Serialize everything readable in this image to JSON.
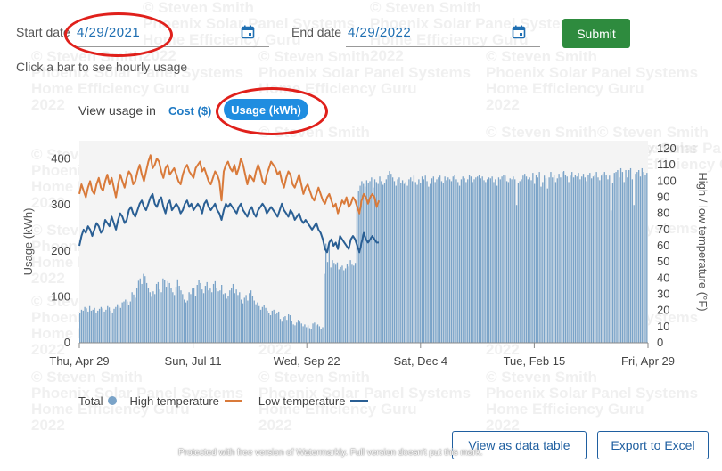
{
  "form": {
    "start_label": "Start date",
    "start_value": "4/29/2021",
    "end_label": "End date",
    "end_value": "4/29/2022",
    "submit_label": "Submit",
    "hint": "Click a bar to see hourly usage"
  },
  "view_toggle": {
    "label": "View usage in",
    "cost_label": "Cost ($)",
    "usage_label": "Usage (kWh)",
    "active": "usage"
  },
  "buttons": {
    "data_table": "View as data table",
    "export": "Export to Excel"
  },
  "watermark": {
    "lines": [
      "© Steven Smith",
      "Phoenix Solar Panel Systems",
      "Home Efficiency Guru",
      "2022"
    ],
    "footer": "Protected with free version of Watermarkly. Full version doesn't put this mark."
  },
  "colors": {
    "bar": "#7aa3c8",
    "high_temp": "#d97a3a",
    "low_temp": "#2a5f94",
    "accent_green": "#2e8b3e",
    "accent_blue": "#1f8de0",
    "annotation_red": "#e0201b"
  },
  "chart_data": {
    "type": "bar",
    "x_tick_labels": [
      "Thu, Apr 29",
      "Sun, Jul 11",
      "Wed, Sep 22",
      "Sat, Dec 4",
      "Tue, Feb 15",
      "Fri, Apr 29"
    ],
    "ylabel": "Usage (kWh)",
    "ylim": [
      0,
      440
    ],
    "yticks": [
      0,
      100,
      200,
      300,
      400
    ],
    "y2label": "High / low temperature (°F)",
    "y2lim": [
      0,
      125
    ],
    "y2ticks": [
      0,
      10,
      20,
      30,
      40,
      50,
      60,
      70,
      80,
      90,
      100,
      110,
      120
    ],
    "legend": [
      "Total",
      "High temperature",
      "Low temperature"
    ],
    "legend_position": "bottom-left",
    "series": [
      {
        "name": "Total",
        "axis": "left",
        "x_start": "2021-04-29",
        "values": [
          65,
          72,
          70,
          78,
          75,
          68,
          80,
          70,
          72,
          76,
          66,
          70,
          74,
          78,
          75,
          68,
          72,
          80,
          77,
          70,
          66,
          74,
          78,
          84,
          80,
          76,
          88,
          90,
          94,
          90,
          82,
          90,
          110,
          105,
          98,
          120,
          135,
          140,
          128,
          150,
          145,
          130,
          120,
          110,
          100,
          112,
          106,
          128,
          132,
          116,
          110,
          140,
          136,
          122,
          134,
          130,
          120,
          110,
          104,
          122,
          138,
          124,
          114,
          106,
          94,
          88,
          92,
          110,
          106,
          118,
          120,
          102,
          126,
          136,
          130,
          116,
          108,
          124,
          132,
          114,
          118,
          110,
          128,
          134,
          120,
          112,
          114,
          126,
          106,
          108,
          96,
          102,
          114,
          120,
          128,
          108,
          116,
          104,
          110,
          94,
          86,
          98,
          104,
          92,
          108,
          114,
          102,
          92,
          84,
          88,
          80,
          72,
          78,
          82,
          76,
          70,
          64,
          60,
          70,
          72,
          62,
          66,
          68,
          52,
          46,
          56,
          58,
          50,
          62,
          60,
          48,
          40,
          38,
          44,
          50,
          46,
          42,
          36,
          40,
          34,
          38,
          32,
          30,
          42,
          44,
          38,
          40,
          36,
          30,
          34,
          150,
          216,
          176,
          220,
          164,
          180,
          174,
          170,
          175,
          160,
          165,
          168,
          158,
          162,
          172,
          166,
          180,
          170,
          168,
          174,
          310,
          330,
          342,
          352,
          346,
          340,
          354,
          348,
          352,
          360,
          338,
          356,
          350,
          346,
          362,
          352,
          344,
          348,
          356,
          366,
          374,
          368,
          360,
          352,
          342,
          356,
          360,
          348,
          354,
          346,
          350,
          342,
          356,
          360,
          352,
          364,
          350,
          344,
          356,
          348,
          362,
          356,
          364,
          352,
          340,
          346,
          358,
          362,
          350,
          356,
          360,
          364,
          352,
          348,
          362,
          354,
          360,
          356,
          352,
          362,
          366,
          356,
          350,
          342,
          356,
          362,
          358,
          350,
          356,
          366,
          362,
          350,
          356,
          360,
          362,
          366,
          358,
          362,
          354,
          350,
          356,
          360,
          358,
          362,
          350,
          356,
          342,
          360,
          356,
          362,
          366,
          364,
          352,
          350,
          358,
          356,
          362,
          356,
          300,
          348,
          352,
          356,
          364,
          368,
          362,
          356,
          360,
          354,
          370,
          346,
          366,
          360,
          372,
          340,
          350,
          364,
          358,
          336,
          360,
          372,
          360,
          366,
          350,
          358,
          368,
          360,
          372,
          374,
          366,
          362,
          350,
          364,
          372,
          360,
          366,
          362,
          370,
          356,
          362,
          368,
          360,
          352,
          366,
          370,
          358,
          362,
          366,
          372,
          360,
          354,
          364,
          368,
          372,
          366,
          356,
          364,
          288,
          348,
          370,
          372,
          376,
          360,
          380,
          372,
          350,
          376,
          360,
          376,
          380,
          356,
          300,
          368,
          372,
          376,
          362,
          380,
          372,
          366,
          370
        ]
      },
      {
        "name": "High temperature",
        "axis": "right",
        "x_start": "2021-04-29",
        "values": [
          92,
          98,
          94,
          90,
          96,
          100,
          94,
          92,
          98,
          102,
          96,
          94,
          100,
          104,
          98,
          102,
          96,
          90,
          98,
          104,
          100,
          96,
          102,
          106,
          104,
          98,
          100,
          106,
          110,
          104,
          100,
          106,
          112,
          116,
          108,
          110,
          114,
          112,
          106,
          102,
          108,
          110,
          104,
          106,
          108,
          104,
          100,
          98,
          104,
          108,
          110,
          106,
          104,
          102,
          108,
          110,
          112,
          106,
          108,
          104,
          100,
          98,
          102,
          106,
          104,
          100,
          88,
          106,
          110,
          112,
          108,
          106,
          110,
          104,
          108,
          114,
          110,
          104,
          98,
          104,
          102,
          100,
          106,
          110,
          106,
          100,
          98,
          104,
          108,
          112,
          110,
          108,
          104,
          106,
          100,
          96,
          102,
          106,
          104,
          98,
          96,
          100,
          104,
          98,
          92,
          96,
          98,
          94,
          90,
          88,
          92,
          96,
          92,
          88,
          86,
          90,
          92,
          88,
          84,
          86,
          80,
          84,
          88,
          86,
          90,
          84,
          86,
          90,
          88,
          84,
          80,
          88,
          92,
          90,
          86,
          90,
          92,
          90,
          84,
          88
        ]
      },
      {
        "name": "Low temperature",
        "axis": "right",
        "x_start": "2021-04-29",
        "values": [
          60,
          66,
          70,
          68,
          72,
          70,
          66,
          70,
          74,
          72,
          68,
          70,
          76,
          74,
          72,
          78,
          74,
          70,
          76,
          80,
          78,
          74,
          76,
          82,
          84,
          80,
          78,
          82,
          86,
          88,
          84,
          82,
          86,
          90,
          92,
          86,
          84,
          88,
          90,
          84,
          80,
          86,
          88,
          82,
          84,
          86,
          84,
          80,
          82,
          86,
          88,
          84,
          86,
          82,
          84,
          86,
          84,
          80,
          86,
          88,
          84,
          82,
          84,
          86,
          82,
          80,
          76,
          82,
          86,
          84,
          86,
          84,
          82,
          80,
          84,
          86,
          82,
          80,
          78,
          82,
          84,
          80,
          78,
          82,
          84,
          86,
          84,
          80,
          82,
          84,
          82,
          80,
          78,
          82,
          86,
          82,
          80,
          78,
          82,
          80,
          76,
          78,
          80,
          76,
          74,
          76,
          74,
          72,
          70,
          72,
          74,
          70,
          68,
          64,
          58,
          56,
          62,
          64,
          60,
          62,
          58,
          66,
          64,
          62,
          60,
          58,
          64,
          66,
          64,
          60,
          56,
          62,
          68,
          64,
          62,
          64,
          66,
          64,
          62,
          62
        ]
      }
    ]
  }
}
